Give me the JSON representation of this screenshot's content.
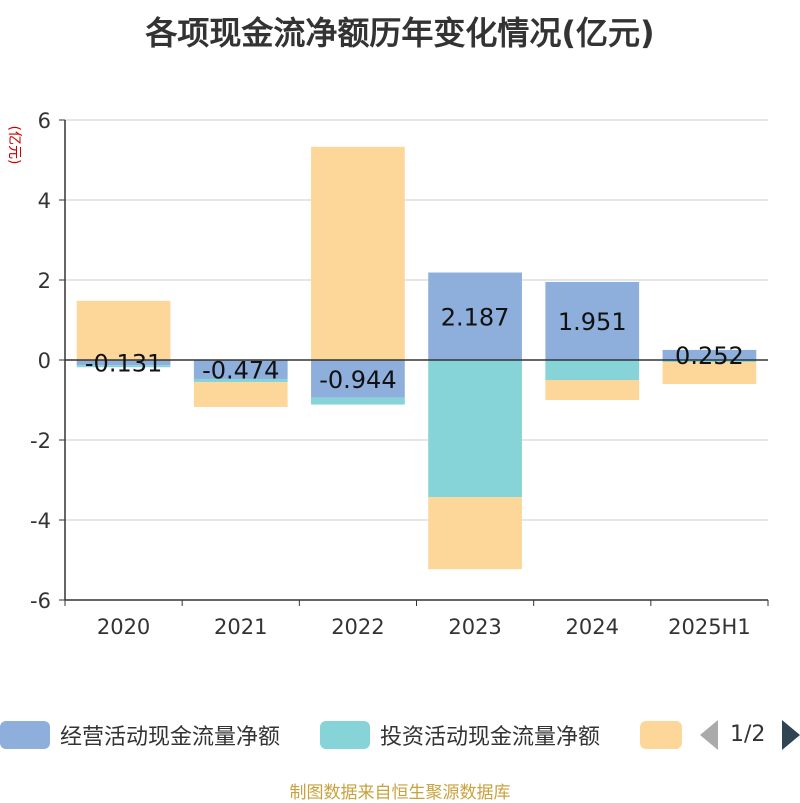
{
  "page": {
    "title": "各项现金流净额历年变化情况(亿元)",
    "source": "制图数据来自恒生聚源数据库"
  },
  "legend": {
    "items": [
      {
        "label": "经营活动现金流量净额",
        "color": "#8eaedb"
      },
      {
        "label": "投资活动现金流量净额",
        "color": "#86d4d8"
      },
      {
        "label": "",
        "color": "#fdd79a"
      }
    ],
    "page_indicator": "1/2",
    "prev_icon": "triangle-left-icon",
    "next_icon": "triangle-right-icon"
  },
  "chart_data": {
    "type": "bar",
    "stacked": true,
    "title": "各项现金流净额历年变化情况(亿元)",
    "ylabel": "(亿元)",
    "xlabel": "",
    "categories": [
      "2020",
      "2021",
      "2022",
      "2023",
      "2024",
      "2025H1"
    ],
    "ylim": [
      -6,
      6
    ],
    "yticks": [
      -6,
      -4,
      -2,
      0,
      2,
      4,
      6
    ],
    "grid": true,
    "legend_position": "bottom",
    "series": [
      {
        "name": "经营活动现金流量净额",
        "color": "#8eaedb",
        "values": [
          -0.131,
          -0.474,
          -0.944,
          2.187,
          1.951,
          0.252
        ],
        "labels": [
          "-0.131",
          "-0.474",
          "-0.944",
          "2.187",
          "1.951",
          "0.252"
        ]
      },
      {
        "name": "投资活动现金流量净额",
        "color": "#86d4d8",
        "values": [
          -0.05,
          -0.08,
          -0.17,
          -3.43,
          -0.5,
          -0.05
        ]
      },
      {
        "name": "",
        "color": "#fdd79a",
        "values": [
          1.48,
          -0.62,
          5.33,
          -1.8,
          -0.5,
          -0.55
        ]
      }
    ]
  }
}
